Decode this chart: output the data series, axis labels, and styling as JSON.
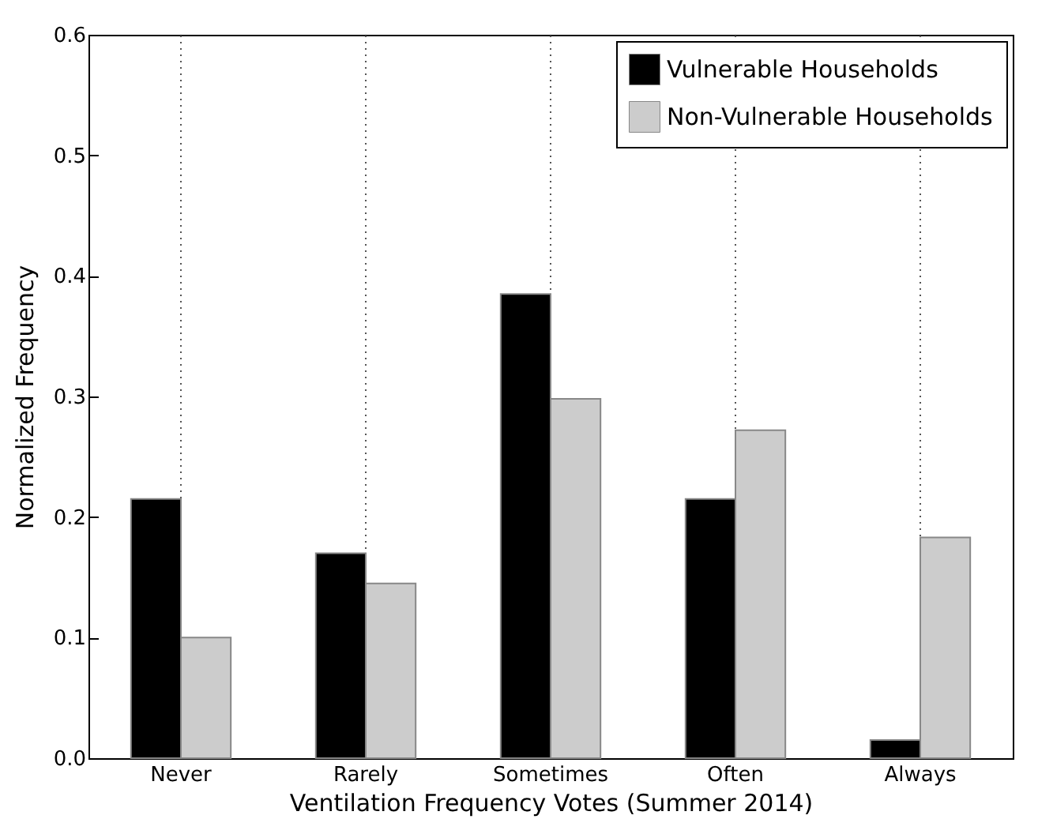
{
  "chart_data": {
    "type": "bar",
    "xlabel": "Ventilation Frequency Votes (Summer 2014)",
    "ylabel": "Normalized Frequency",
    "categories": [
      "Never",
      "Rarely",
      "Sometimes",
      "Often",
      "Always"
    ],
    "series": [
      {
        "name": "Vulnerable Households",
        "color": "#000000",
        "values": [
          0.215,
          0.17,
          0.385,
          0.215,
          0.015
        ]
      },
      {
        "name": "Non-Vulnerable Households",
        "color": "#cccccc",
        "values": [
          0.1,
          0.145,
          0.298,
          0.272,
          0.183
        ]
      }
    ],
    "ylim": [
      0,
      0.6
    ],
    "yticks": [
      {
        "value": 0,
        "label": "0.0"
      },
      0.1,
      0.2,
      0.3,
      0.4,
      0.5,
      0.6
    ],
    "grid": "x",
    "legend": "top right"
  }
}
